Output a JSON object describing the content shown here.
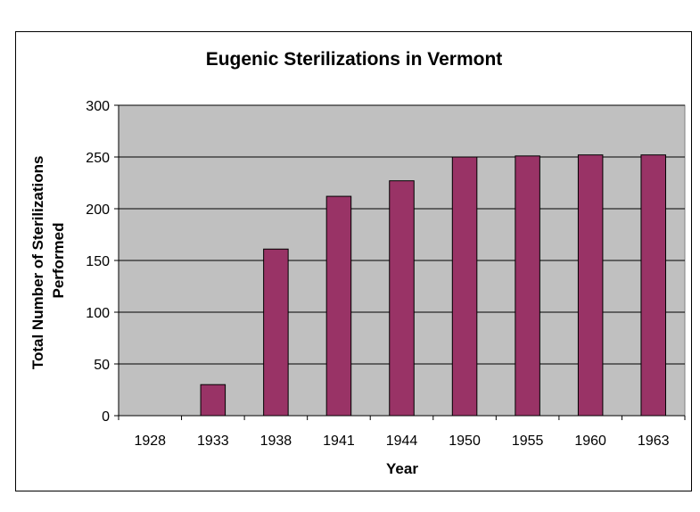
{
  "chart_data": {
    "type": "bar",
    "title": "Eugenic Sterilizations in Vermont",
    "xlabel": "Year",
    "ylabel": "Total Number of Sterilizations Performed",
    "ylabel_lines": [
      "Total Number of Sterilizations",
      "Performed"
    ],
    "categories": [
      "1928",
      "1933",
      "1938",
      "1941",
      "1944",
      "1950",
      "1955",
      "1960",
      "1963"
    ],
    "values": [
      0,
      30,
      161,
      212,
      227,
      250,
      251,
      252,
      252
    ],
    "ylim": [
      0,
      300
    ],
    "yticks": [
      0,
      50,
      100,
      150,
      200,
      250,
      300
    ],
    "grid": true,
    "legend": "none",
    "colors": {
      "bar": "#993366",
      "plot_background": "#c0c0c0",
      "grid": "#000000"
    }
  }
}
